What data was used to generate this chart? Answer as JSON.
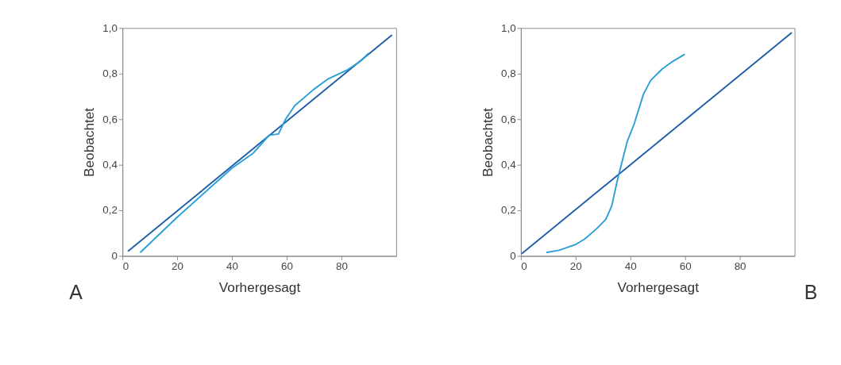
{
  "chart_data": [
    {
      "type": "line",
      "xlabel": "Vorhergesagt",
      "ylabel": "Beobachtet",
      "annotations": [
        "A"
      ],
      "xlim": [
        0,
        100
      ],
      "ylim": [
        0,
        1.0
      ],
      "xticks": [
        0,
        20,
        40,
        60,
        80
      ],
      "yticks": [
        0,
        {
          "value": 0.2,
          "label": "0,2"
        },
        {
          "value": 0.4,
          "label": "0,4"
        },
        {
          "value": 0.6,
          "label": "0,6"
        },
        {
          "value": 0.8,
          "label": "0,8"
        },
        {
          "value": 1.0,
          "label": "1,0"
        }
      ],
      "grid": false,
      "legend": false,
      "marker": "none",
      "line_style": "solid",
      "series": [
        {
          "color": "#1f5fa8",
          "x": [
            2,
            98.5
          ],
          "values": [
            0.02,
            0.97
          ]
        },
        {
          "color": "#2a9fd6",
          "x": [
            6.5,
            20,
            40,
            47.7,
            53.6,
            57,
            59.6,
            63,
            69.8,
            74.9,
            82,
            87,
            90
          ],
          "values": [
            0.015,
            0.17,
            0.385,
            0.45,
            0.53,
            0.535,
            0.6,
            0.66,
            0.73,
            0.775,
            0.815,
            0.855,
            0.89
          ]
        }
      ]
    },
    {
      "type": "line",
      "xlabel": "Vorhergesagt",
      "ylabel": "Beobachtet",
      "annotations": [
        "B"
      ],
      "xlim": [
        0,
        100
      ],
      "ylim": [
        0,
        1.0
      ],
      "xticks": [
        0,
        20,
        40,
        60,
        80
      ],
      "yticks": [
        0,
        {
          "value": 0.2,
          "label": "0,2"
        },
        {
          "value": 0.4,
          "label": "0,4"
        },
        {
          "value": 0.6,
          "label": "0,6"
        },
        {
          "value": 0.8,
          "label": "0,8"
        },
        {
          "value": 1.0,
          "label": "1,0"
        }
      ],
      "grid": false,
      "legend": false,
      "marker": "none",
      "line_style": "solid",
      "series": [
        {
          "color": "#1f5fa8",
          "x": [
            0.3,
            99
          ],
          "values": [
            0.01,
            0.98
          ]
        },
        {
          "color": "#2a9fd6",
          "x": [
            9.3,
            14,
            20,
            23.4,
            27.7,
            31,
            33.2,
            35.4,
            37.1,
            38.8,
            41.4,
            44.8,
            47.4,
            51.6,
            55,
            59.9
          ],
          "values": [
            0.015,
            0.025,
            0.05,
            0.075,
            0.12,
            0.16,
            0.22,
            0.34,
            0.42,
            0.5,
            0.58,
            0.71,
            0.77,
            0.82,
            0.85,
            0.885
          ]
        }
      ]
    }
  ]
}
